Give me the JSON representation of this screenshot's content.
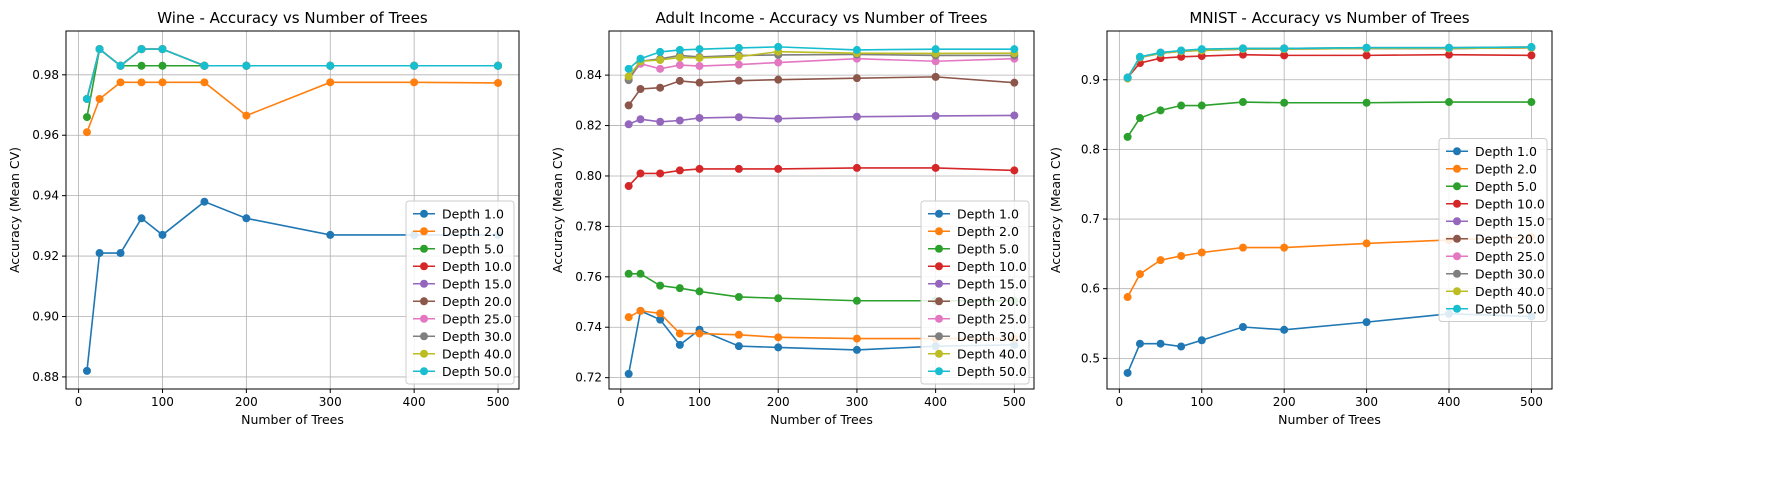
{
  "chart_data": [
    {
      "type": "line",
      "title": "Wine - Accuracy vs Number of Trees",
      "xlabel": "Number of Trees",
      "ylabel": "Accuracy (Mean CV)",
      "xlim": [
        -15,
        525
      ],
      "ylim": [
        0.876,
        0.9945
      ],
      "xticks": [
        0,
        100,
        200,
        300,
        400,
        500
      ],
      "yticks": [
        0.88,
        0.9,
        0.92,
        0.94,
        0.96,
        0.98
      ],
      "ytick_decimals": 2,
      "grid": true,
      "legend_position": "lower-right",
      "x": [
        10,
        25,
        50,
        75,
        100,
        150,
        200,
        300,
        400,
        500
      ],
      "series": [
        {
          "name": "Depth 1.0",
          "color": "#1f77b4",
          "values": [
            0.882,
            0.921,
            0.921,
            0.9325,
            0.927,
            0.938,
            0.9325,
            0.927,
            0.927,
            0.927
          ]
        },
        {
          "name": "Depth 2.0",
          "color": "#ff7f0e",
          "values": [
            0.961,
            0.972,
            0.9775,
            0.9775,
            0.9775,
            0.9775,
            0.9665,
            0.9775,
            0.9775,
            0.9773
          ]
        },
        {
          "name": "Depth 5.0",
          "color": "#2ca02c",
          "values": [
            0.966,
            0.9885,
            0.983,
            0.983,
            0.983,
            0.983,
            0.983,
            0.983,
            0.983,
            0.983
          ]
        },
        {
          "name": "Depth 10.0",
          "color": "#d62728",
          "values": [
            0.972,
            0.9885,
            0.983,
            0.9885,
            0.9885,
            0.983,
            0.983,
            0.983,
            0.983,
            0.983
          ]
        },
        {
          "name": "Depth 15.0",
          "color": "#9467bd",
          "values": [
            0.972,
            0.9885,
            0.983,
            0.9885,
            0.9885,
            0.983,
            0.983,
            0.983,
            0.983,
            0.983
          ]
        },
        {
          "name": "Depth 20.0",
          "color": "#8c564b",
          "values": [
            0.972,
            0.9885,
            0.983,
            0.9885,
            0.9885,
            0.983,
            0.983,
            0.983,
            0.983,
            0.983
          ]
        },
        {
          "name": "Depth 25.0",
          "color": "#e377c2",
          "values": [
            0.972,
            0.9885,
            0.983,
            0.9885,
            0.9885,
            0.983,
            0.983,
            0.983,
            0.983,
            0.983
          ]
        },
        {
          "name": "Depth 30.0",
          "color": "#7f7f7f",
          "values": [
            0.972,
            0.9885,
            0.983,
            0.9885,
            0.9885,
            0.983,
            0.983,
            0.983,
            0.983,
            0.983
          ]
        },
        {
          "name": "Depth 40.0",
          "color": "#bcbd22",
          "values": [
            0.972,
            0.9885,
            0.983,
            0.9885,
            0.9885,
            0.983,
            0.983,
            0.983,
            0.983,
            0.983
          ]
        },
        {
          "name": "Depth 50.0",
          "color": "#17becf",
          "values": [
            0.972,
            0.9885,
            0.983,
            0.9885,
            0.9885,
            0.983,
            0.983,
            0.983,
            0.983,
            0.983
          ]
        }
      ]
    },
    {
      "type": "line",
      "title": "Adult Income - Accuracy vs Number of Trees",
      "xlabel": "Number of Trees",
      "ylabel": "Accuracy (Mean CV)",
      "xlim": [
        -15,
        525
      ],
      "ylim": [
        0.7155,
        0.8575
      ],
      "xticks": [
        0,
        100,
        200,
        300,
        400,
        500
      ],
      "yticks": [
        0.72,
        0.74,
        0.76,
        0.78,
        0.8,
        0.82,
        0.84
      ],
      "ytick_decimals": 2,
      "grid": true,
      "legend_position": "lower-right",
      "x": [
        10,
        25,
        50,
        75,
        100,
        150,
        200,
        300,
        400,
        500
      ],
      "series": [
        {
          "name": "Depth 1.0",
          "color": "#1f77b4",
          "values": [
            0.7215,
            0.7465,
            0.743,
            0.733,
            0.739,
            0.7325,
            0.732,
            0.731,
            0.7325,
            0.733
          ]
        },
        {
          "name": "Depth 2.0",
          "color": "#ff7f0e",
          "values": [
            0.744,
            0.7465,
            0.7455,
            0.7375,
            0.7375,
            0.737,
            0.736,
            0.7355,
            0.7355,
            0.7355
          ]
        },
        {
          "name": "Depth 5.0",
          "color": "#2ca02c",
          "values": [
            0.7612,
            0.7612,
            0.7565,
            0.7555,
            0.7542,
            0.752,
            0.7515,
            0.7505,
            0.7505,
            0.7505
          ]
        },
        {
          "name": "Depth 10.0",
          "color": "#d62728",
          "values": [
            0.796,
            0.801,
            0.801,
            0.8022,
            0.8028,
            0.8028,
            0.8028,
            0.8032,
            0.8032,
            0.8022
          ]
        },
        {
          "name": "Depth 15.0",
          "color": "#9467bd",
          "values": [
            0.8205,
            0.8225,
            0.8215,
            0.822,
            0.823,
            0.8233,
            0.8227,
            0.8235,
            0.8238,
            0.824
          ]
        },
        {
          "name": "Depth 20.0",
          "color": "#8c564b",
          "values": [
            0.828,
            0.8345,
            0.835,
            0.8377,
            0.837,
            0.8378,
            0.8382,
            0.8388,
            0.8393,
            0.837
          ]
        },
        {
          "name": "Depth 25.0",
          "color": "#e377c2",
          "values": [
            0.8385,
            0.8445,
            0.8425,
            0.844,
            0.8436,
            0.8442,
            0.845,
            0.8465,
            0.8455,
            0.8465
          ]
        },
        {
          "name": "Depth 30.0",
          "color": "#7f7f7f",
          "values": [
            0.838,
            0.8455,
            0.8465,
            0.8478,
            0.8472,
            0.8478,
            0.848,
            0.8482,
            0.8478,
            0.8478
          ]
        },
        {
          "name": "Depth 40.0",
          "color": "#bcbd22",
          "values": [
            0.8395,
            0.8455,
            0.846,
            0.847,
            0.8468,
            0.8473,
            0.8493,
            0.8487,
            0.8486,
            0.8487
          ]
        },
        {
          "name": "Depth 50.0",
          "color": "#17becf",
          "values": [
            0.8425,
            0.8465,
            0.8492,
            0.85,
            0.8503,
            0.8508,
            0.8512,
            0.85,
            0.8503,
            0.8503
          ]
        }
      ]
    },
    {
      "type": "line",
      "title": "MNIST - Accuracy vs Number of Trees",
      "xlabel": "Number of Trees",
      "ylabel": "Accuracy (Mean CV)",
      "xlim": [
        -15,
        525
      ],
      "ylim": [
        0.456,
        0.97
      ],
      "xticks": [
        0,
        100,
        200,
        300,
        400,
        500
      ],
      "yticks": [
        0.5,
        0.6,
        0.7,
        0.8,
        0.9
      ],
      "ytick_decimals": 1,
      "grid": true,
      "legend_position": "center-right",
      "x": [
        10,
        25,
        50,
        75,
        100,
        150,
        200,
        300,
        400,
        500
      ],
      "series": [
        {
          "name": "Depth 1.0",
          "color": "#1f77b4",
          "values": [
            0.479,
            0.521,
            0.521,
            0.517,
            0.526,
            0.545,
            0.541,
            0.552,
            0.564,
            0.56
          ]
        },
        {
          "name": "Depth 2.0",
          "color": "#ff7f0e",
          "values": [
            0.588,
            0.621,
            0.641,
            0.647,
            0.652,
            0.659,
            0.659,
            0.665,
            0.67,
            0.674
          ]
        },
        {
          "name": "Depth 5.0",
          "color": "#2ca02c",
          "values": [
            0.818,
            0.845,
            0.856,
            0.863,
            0.863,
            0.868,
            0.867,
            0.867,
            0.868,
            0.868
          ]
        },
        {
          "name": "Depth 10.0",
          "color": "#d62728",
          "values": [
            0.903,
            0.924,
            0.931,
            0.933,
            0.934,
            0.936,
            0.935,
            0.935,
            0.936,
            0.935
          ]
        },
        {
          "name": "Depth 15.0",
          "color": "#9467bd",
          "values": [
            0.902,
            0.932,
            0.938,
            0.941,
            0.942,
            0.944,
            0.944,
            0.945,
            0.945,
            0.946
          ]
        },
        {
          "name": "Depth 20.0",
          "color": "#8c564b",
          "values": [
            0.903,
            0.932,
            0.938,
            0.941,
            0.943,
            0.944,
            0.945,
            0.945,
            0.945,
            0.946
          ]
        },
        {
          "name": "Depth 25.0",
          "color": "#e377c2",
          "values": [
            0.902,
            0.932,
            0.938,
            0.941,
            0.942,
            0.944,
            0.944,
            0.945,
            0.945,
            0.946
          ]
        },
        {
          "name": "Depth 30.0",
          "color": "#7f7f7f",
          "values": [
            0.903,
            0.932,
            0.939,
            0.941,
            0.943,
            0.945,
            0.945,
            0.946,
            0.946,
            0.947
          ]
        },
        {
          "name": "Depth 40.0",
          "color": "#bcbd22",
          "values": [
            0.902,
            0.932,
            0.938,
            0.941,
            0.942,
            0.944,
            0.944,
            0.945,
            0.945,
            0.946
          ]
        },
        {
          "name": "Depth 50.0",
          "color": "#17becf",
          "values": [
            0.903,
            0.933,
            0.939,
            0.942,
            0.944,
            0.945,
            0.945,
            0.946,
            0.946,
            0.947
          ]
        }
      ]
    }
  ]
}
